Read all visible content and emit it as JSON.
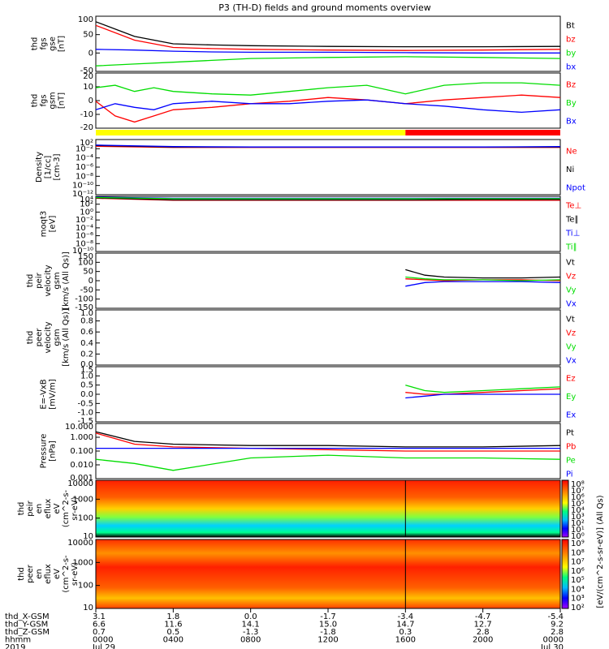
{
  "title": "P3 (TH-D) fields and ground moments overview",
  "colors": {
    "black": "#000000",
    "red": "#ff0000",
    "green": "#00dd00",
    "blue": "#0000ff",
    "yellow": "#ffff00"
  },
  "ephemeris": {
    "labels": [
      "thd_X-GSM",
      "thd_Y-GSM",
      "thd_Z-GSM",
      "hhmm",
      "2019"
    ],
    "columns": [
      {
        "x": "3.1",
        "y": "6.6",
        "z": "0.7",
        "hhmm": "0000",
        "date": "Jul 29"
      },
      {
        "x": "1.8",
        "y": "11.6",
        "z": "0.5",
        "hhmm": "0400",
        "date": ""
      },
      {
        "x": "0.0",
        "y": "14.1",
        "z": "-1.3",
        "hhmm": "0800",
        "date": ""
      },
      {
        "x": "-1.7",
        "y": "15.0",
        "z": "-1.8",
        "hhmm": "1200",
        "date": ""
      },
      {
        "x": "-3.4",
        "y": "14.7",
        "z": "0.3",
        "hhmm": "1600",
        "date": ""
      },
      {
        "x": "-4.7",
        "y": "12.7",
        "z": "2.8",
        "hhmm": "2000",
        "date": ""
      },
      {
        "x": "-5.4",
        "y": "9.2",
        "z": "2.8",
        "hhmm": "0000",
        "date": "Jul 30"
      }
    ]
  },
  "chart_data": [
    {
      "type": "line",
      "panel": "fgs-gse",
      "ylabel": [
        "thd",
        "fgs",
        "gse",
        "[nT]"
      ],
      "yticks": [
        "100",
        "50",
        "0",
        "-50"
      ],
      "ylim": [
        -50,
        100
      ],
      "legend": [
        "Bt",
        "bz",
        "by",
        "bx"
      ],
      "series": [
        {
          "name": "Bt",
          "color": "#000000",
          "x": [
            0,
            2,
            4,
            6,
            8,
            12,
            16,
            20,
            24
          ],
          "y": [
            85,
            45,
            25,
            22,
            20,
            18,
            17,
            17,
            18
          ]
        },
        {
          "name": "bz",
          "color": "#ff0000",
          "x": [
            0,
            2,
            4,
            6,
            8,
            12,
            16,
            20,
            24
          ],
          "y": [
            75,
            35,
            15,
            12,
            10,
            8,
            7,
            8,
            10
          ]
        },
        {
          "name": "by",
          "color": "#00dd00",
          "x": [
            0,
            2,
            4,
            6,
            8,
            12,
            16,
            20,
            24
          ],
          "y": [
            -35,
            -30,
            -25,
            -20,
            -15,
            -12,
            -10,
            -12,
            -15
          ]
        },
        {
          "name": "bx",
          "color": "#0000ff",
          "x": [
            0,
            2,
            4,
            6,
            8,
            12,
            16,
            20,
            24
          ],
          "y": [
            10,
            8,
            5,
            3,
            2,
            2,
            1,
            0,
            0
          ]
        }
      ]
    },
    {
      "type": "line",
      "panel": "fgs-gsm",
      "ylabel": [
        "thd",
        "fgs",
        "gsm",
        "[nT]"
      ],
      "yticks": [
        "20",
        "10",
        "0",
        "-10",
        "-20"
      ],
      "ylim": [
        -25,
        20
      ],
      "legend": [
        "Bz",
        "By",
        "Bx"
      ],
      "series": [
        {
          "name": "Bz",
          "color": "#ff0000",
          "x": [
            0,
            1,
            2,
            3,
            4,
            6,
            8,
            10,
            12,
            14,
            16,
            18,
            20,
            22,
            24
          ],
          "y": [
            -3,
            -15,
            -20,
            -15,
            -10,
            -8,
            -5,
            -3,
            0,
            -2,
            -5,
            -2,
            0,
            2,
            0
          ]
        },
        {
          "name": "By",
          "color": "#00dd00",
          "x": [
            0,
            1,
            2,
            3,
            4,
            6,
            8,
            10,
            12,
            14,
            16,
            18,
            20,
            22,
            24
          ],
          "y": [
            8,
            10,
            5,
            8,
            5,
            3,
            2,
            5,
            8,
            10,
            3,
            10,
            12,
            12,
            10
          ]
        },
        {
          "name": "Bx",
          "color": "#0000ff",
          "x": [
            0,
            1,
            2,
            3,
            4,
            6,
            8,
            10,
            12,
            14,
            16,
            18,
            20,
            22,
            24
          ],
          "y": [
            -10,
            -5,
            -8,
            -10,
            -5,
            -3,
            -5,
            -5,
            -3,
            -2,
            -5,
            -7,
            -10,
            -12,
            -10
          ]
        }
      ]
    },
    {
      "type": "bar",
      "panel": "mode-bar",
      "segments": [
        {
          "from": 0,
          "to": 16,
          "color": "#ffff00"
        },
        {
          "from": 16,
          "to": 24,
          "color": "#ff0000"
        }
      ]
    },
    {
      "type": "line",
      "panel": "density",
      "ylabel": [
        "Density",
        "[1/cc]",
        "[cm-3]"
      ],
      "yticks": [
        "10²",
        "10⁻²",
        "10⁻⁴",
        "10⁻⁶",
        "10⁻⁸",
        "10⁻¹⁰",
        "10⁻¹²"
      ],
      "log": true,
      "ylim": [
        -12,
        2
      ],
      "legend": [
        "Ne",
        "Ni",
        "Npot"
      ],
      "series": [
        {
          "name": "Ne",
          "color": "#ff0000",
          "x": [
            0,
            4,
            8,
            12,
            16,
            20,
            24
          ],
          "y": [
            0.3,
            0,
            0,
            0,
            0,
            0,
            0
          ]
        },
        {
          "name": "Ni",
          "color": "#000000",
          "x": [
            0,
            4,
            8,
            12,
            16,
            20,
            24
          ],
          "y": [
            0.5,
            0.1,
            0.1,
            0.1,
            0.1,
            0.1,
            0.1
          ]
        },
        {
          "name": "Npot",
          "color": "#0000ff",
          "x": [
            0,
            4,
            8,
            12,
            16,
            20,
            24
          ],
          "y": [
            0.6,
            0.2,
            0.1,
            0.1,
            0.1,
            0.1,
            0.2
          ]
        }
      ]
    },
    {
      "type": "line",
      "panel": "temperature",
      "ylabel": [
        "moqt3",
        "[eV]"
      ],
      "yticks": [
        "10⁴",
        "10²",
        "10⁰",
        "10⁻²",
        "10⁻⁴",
        "10⁻⁶",
        "10⁻⁸",
        "10⁻¹⁰"
      ],
      "log": true,
      "ylim": [
        -10,
        4
      ],
      "legend": [
        "Te⊥",
        "Te∥",
        "Ti⊥",
        "Ti∥"
      ],
      "series": [
        {
          "name": "Te⊥",
          "color": "#ff0000",
          "x": [
            0,
            4,
            8,
            12,
            16,
            20,
            24
          ],
          "y": [
            3.5,
            3,
            3,
            3,
            3,
            3,
            3
          ]
        },
        {
          "name": "Te∥",
          "color": "#000000",
          "x": [
            0,
            4,
            8,
            12,
            16,
            20,
            24
          ],
          "y": [
            3.6,
            3.1,
            3.1,
            3.1,
            3.1,
            3.2,
            3.2
          ]
        },
        {
          "name": "Ti⊥",
          "color": "#0000ff",
          "x": [
            0,
            4,
            8,
            12,
            16,
            20,
            24
          ],
          "y": [
            3.8,
            3.5,
            3.5,
            3.5,
            3.5,
            3.5,
            3.5
          ]
        },
        {
          "name": "Ti∥",
          "color": "#00dd00",
          "x": [
            0,
            4,
            8,
            12,
            16,
            20,
            24
          ],
          "y": [
            3.7,
            3.4,
            3.4,
            3.4,
            3.4,
            3.4,
            3.4
          ]
        }
      ]
    },
    {
      "type": "line",
      "panel": "peir-velocity",
      "ylabel": [
        "thd",
        "peir",
        "velocity",
        "gsm",
        "[km/s (All Qs)]"
      ],
      "yticks": [
        "150",
        "100",
        "50",
        "0",
        "-50",
        "-100",
        "-150"
      ],
      "ylim": [
        -150,
        150
      ],
      "legend": [
        "Vt",
        "Vz",
        "Vy",
        "Vx"
      ],
      "series": [
        {
          "name": "Vt",
          "color": "#000000",
          "x": [
            16,
            17,
            18,
            20,
            22,
            24
          ],
          "y": [
            60,
            30,
            20,
            15,
            15,
            20
          ]
        },
        {
          "name": "Vz",
          "color": "#ff0000",
          "x": [
            16,
            17,
            18,
            20,
            22,
            24
          ],
          "y": [
            10,
            5,
            0,
            5,
            5,
            0
          ]
        },
        {
          "name": "Vy",
          "color": "#00dd00",
          "x": [
            16,
            17,
            18,
            20,
            22,
            24
          ],
          "y": [
            20,
            10,
            5,
            5,
            0,
            5
          ]
        },
        {
          "name": "Vx",
          "color": "#0000ff",
          "x": [
            16,
            17,
            18,
            20,
            22,
            24
          ],
          "y": [
            -30,
            -10,
            -5,
            -5,
            -5,
            -10
          ]
        }
      ]
    },
    {
      "type": "line",
      "panel": "peer-velocity",
      "ylabel": [
        "thd",
        "peer",
        "velocity",
        "gsm",
        "[km/s (All Qs)]"
      ],
      "yticks": [
        "1.0",
        "0.8",
        "0.6",
        "0.4",
        "0.2",
        "0.0"
      ],
      "ylim": [
        0,
        1
      ],
      "legend": [
        "Vt",
        "Vz",
        "Vy",
        "Vx"
      ],
      "series": []
    },
    {
      "type": "line",
      "panel": "efield",
      "ylabel": [
        "E=-VxB",
        "[mV/m]"
      ],
      "yticks": [
        "1.5",
        "1.0",
        "0.5",
        "0.0",
        "-0.5",
        "-1.0",
        "-1.5"
      ],
      "ylim": [
        -1.5,
        1.5
      ],
      "legend": [
        "Ez",
        "Ey",
        "Ex"
      ],
      "series": [
        {
          "name": "Ez",
          "color": "#ff0000",
          "x": [
            16,
            17,
            18,
            20,
            22,
            24
          ],
          "y": [
            0.1,
            0,
            0,
            0.1,
            0.2,
            0.3
          ]
        },
        {
          "name": "Ey",
          "color": "#00dd00",
          "x": [
            16,
            17,
            18,
            20,
            22,
            24
          ],
          "y": [
            0.5,
            0.2,
            0.1,
            0.2,
            0.3,
            0.4
          ]
        },
        {
          "name": "Ex",
          "color": "#0000ff",
          "x": [
            16,
            17,
            18,
            20,
            22,
            24
          ],
          "y": [
            -0.2,
            -0.1,
            0,
            0,
            0,
            0
          ]
        }
      ]
    },
    {
      "type": "line",
      "panel": "pressure",
      "ylabel": [
        "Pressure",
        "[nPa]"
      ],
      "yticks": [
        "10.000",
        "1.000",
        "0.100",
        "0.010",
        "0.001"
      ],
      "log": true,
      "ylim": [
        -3,
        1
      ],
      "legend": [
        "Pt",
        "Pb",
        "Pe",
        "Pi"
      ],
      "series": [
        {
          "name": "Pt",
          "color": "#000000",
          "x": [
            0,
            2,
            4,
            8,
            12,
            16,
            20,
            24
          ],
          "y": [
            0.4,
            -0.3,
            -0.5,
            -0.6,
            -0.6,
            -0.7,
            -0.7,
            -0.6
          ]
        },
        {
          "name": "Pb",
          "color": "#ff0000",
          "x": [
            0,
            2,
            4,
            8,
            12,
            16,
            20,
            24
          ],
          "y": [
            0.3,
            -0.5,
            -0.7,
            -0.8,
            -0.9,
            -1,
            -1,
            -1
          ]
        },
        {
          "name": "Pe",
          "color": "#00dd00",
          "x": [
            0,
            2,
            4,
            8,
            12,
            16,
            20,
            24
          ],
          "y": [
            -1.6,
            -1.9,
            -2.4,
            -1.5,
            -1.3,
            -1.5,
            -1.5,
            -1.6
          ]
        },
        {
          "name": "Pi",
          "color": "#0000ff",
          "x": [
            0,
            2,
            4,
            8,
            12,
            16,
            20,
            24
          ],
          "y": [
            -0.8,
            -0.8,
            -0.8,
            -0.8,
            -0.8,
            -0.8,
            -0.8,
            -0.8
          ]
        }
      ]
    },
    {
      "type": "heatmap",
      "panel": "peir-spectrogram",
      "ylabel": [
        "thd",
        "peir",
        "en",
        "eflux",
        "eV",
        "(cm^2-s-",
        "sr-eV)"
      ],
      "yticks": [
        "10000",
        "1000",
        "100",
        "10"
      ]
    },
    {
      "type": "heatmap",
      "panel": "peer-spectrogram",
      "ylabel": [
        "thd",
        "peer",
        "en",
        "eflux",
        "eV",
        "(cm^2-s-",
        "sr-eV)"
      ],
      "yticks": [
        "10000",
        "1000",
        "100",
        "10"
      ]
    }
  ],
  "colorbar": {
    "label": "[eV/(cm^2-s-sr-eV)] (All Qs)",
    "ticks1": [
      "10⁸",
      "10⁷",
      "10⁶",
      "10⁵",
      "10⁴",
      "10³",
      "10²",
      "10¹",
      "10⁰"
    ],
    "ticks2": [
      "10⁹",
      "10⁸",
      "10⁷",
      "10⁶",
      "10⁵",
      "10⁴",
      "10³",
      "10²"
    ]
  }
}
